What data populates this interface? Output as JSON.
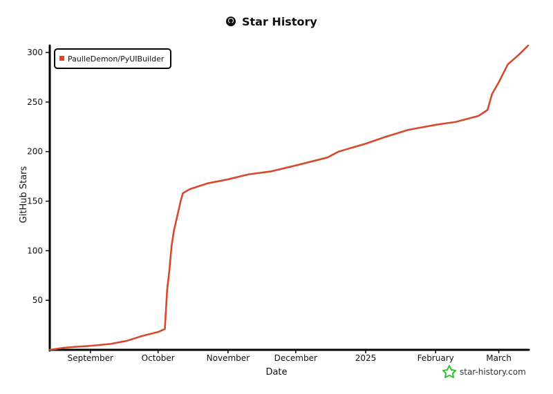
{
  "title": "Star History",
  "brand": "star-history.com",
  "colors": {
    "series": "#d54a2c",
    "brand_star": "#2bc22b",
    "axis": "#000000"
  },
  "chart_data": {
    "type": "line",
    "title": "Star History",
    "xlabel": "Date",
    "ylabel": "GitHub Stars",
    "ylim": [
      0,
      307
    ],
    "xlim": [
      "2024-08-14",
      "2025-03-14"
    ],
    "grid": false,
    "legend": "top-left",
    "y_ticks": [
      50,
      100,
      150,
      200,
      250,
      300
    ],
    "x_ticks": [
      {
        "date": "2024-09-01",
        "label": "September"
      },
      {
        "date": "2024-10-01",
        "label": "October"
      },
      {
        "date": "2024-11-01",
        "label": "November"
      },
      {
        "date": "2024-12-01",
        "label": "December"
      },
      {
        "date": "2025-01-01",
        "label": "2025"
      },
      {
        "date": "2025-02-01",
        "label": "February"
      },
      {
        "date": "2025-03-01",
        "label": "March"
      }
    ],
    "series": [
      {
        "name": "PaulleDemon/PyUIBuilder",
        "points": [
          [
            "2024-08-14",
            0
          ],
          [
            "2024-08-20",
            2
          ],
          [
            "2024-08-25",
            3
          ],
          [
            "2024-09-01",
            4
          ],
          [
            "2024-09-10",
            6
          ],
          [
            "2024-09-17",
            9
          ],
          [
            "2024-09-24",
            14
          ],
          [
            "2024-10-01",
            18
          ],
          [
            "2024-10-04",
            21
          ],
          [
            "2024-10-05",
            60
          ],
          [
            "2024-10-06",
            80
          ],
          [
            "2024-10-07",
            105
          ],
          [
            "2024-10-08",
            120
          ],
          [
            "2024-10-10",
            140
          ],
          [
            "2024-10-11",
            150
          ],
          [
            "2024-10-12",
            158
          ],
          [
            "2024-10-15",
            162
          ],
          [
            "2024-10-23",
            168
          ],
          [
            "2024-11-01",
            172
          ],
          [
            "2024-11-10",
            177
          ],
          [
            "2024-11-20",
            180
          ],
          [
            "2024-12-01",
            186
          ],
          [
            "2024-12-15",
            194
          ],
          [
            "2024-12-20",
            200
          ],
          [
            "2025-01-01",
            208
          ],
          [
            "2025-01-10",
            215
          ],
          [
            "2025-01-20",
            222
          ],
          [
            "2025-02-01",
            227
          ],
          [
            "2025-02-10",
            230
          ],
          [
            "2025-02-20",
            236
          ],
          [
            "2025-02-24",
            242
          ],
          [
            "2025-02-26",
            258
          ],
          [
            "2025-03-01",
            270
          ],
          [
            "2025-03-05",
            288
          ],
          [
            "2025-03-10",
            298
          ],
          [
            "2025-03-14",
            307
          ]
        ]
      }
    ]
  }
}
